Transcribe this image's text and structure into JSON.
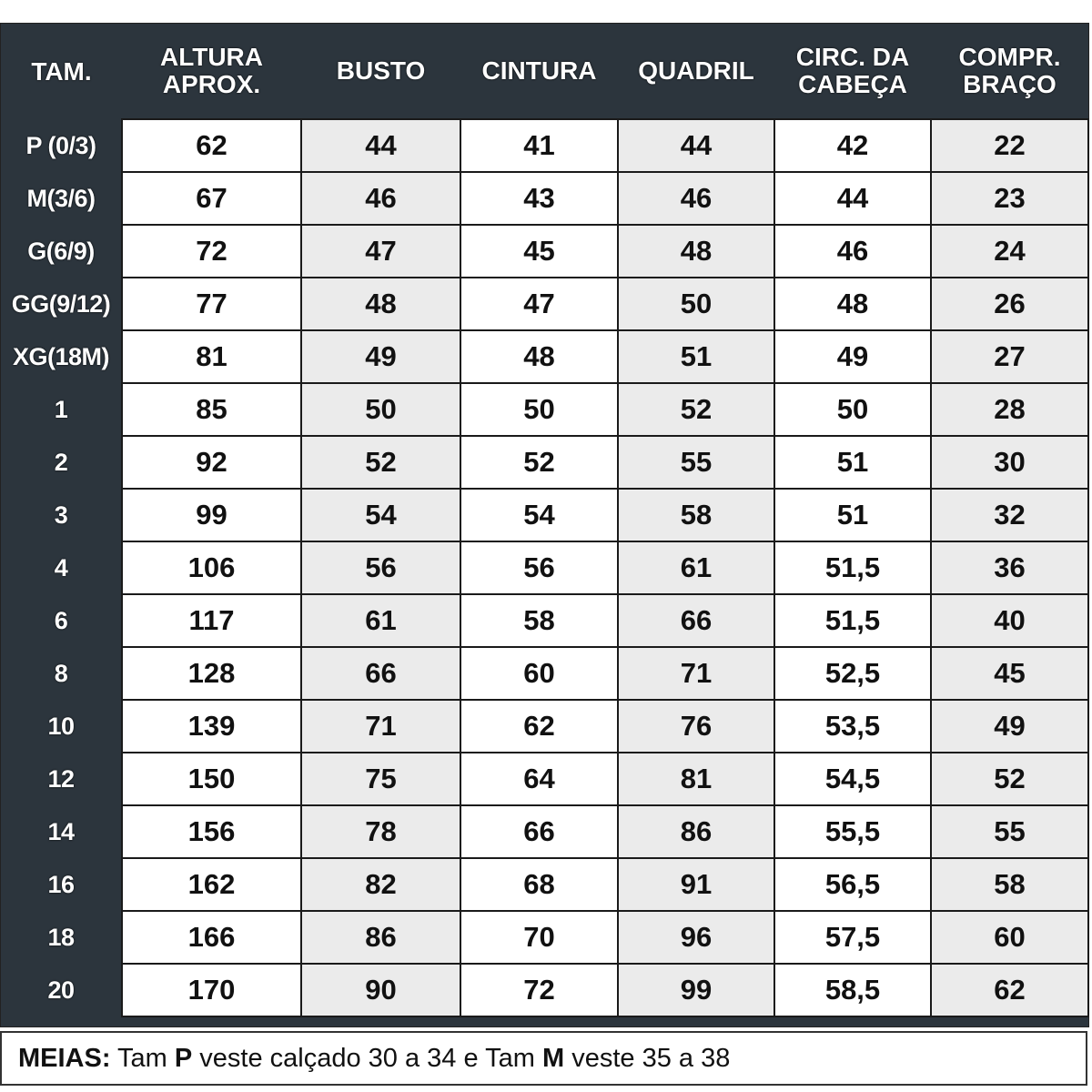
{
  "table": {
    "headers": [
      [
        "TAM.",
        ""
      ],
      [
        "ALTURA",
        "APROX."
      ],
      [
        "BUSTO",
        ""
      ],
      [
        "CINTURA",
        ""
      ],
      [
        "QUADRIL",
        ""
      ],
      [
        "CIRC. DA",
        "CABEÇA"
      ],
      [
        "COMPR.",
        "BRAÇO"
      ]
    ],
    "rows": [
      [
        "P (0/3)",
        "62",
        "44",
        "41",
        "44",
        "42",
        "22"
      ],
      [
        "M(3/6)",
        "67",
        "46",
        "43",
        "46",
        "44",
        "23"
      ],
      [
        "G(6/9)",
        "72",
        "47",
        "45",
        "48",
        "46",
        "24"
      ],
      [
        "GG(9/12)",
        "77",
        "48",
        "47",
        "50",
        "48",
        "26"
      ],
      [
        "XG(18M)",
        "81",
        "49",
        "48",
        "51",
        "49",
        "27"
      ],
      [
        "1",
        "85",
        "50",
        "50",
        "52",
        "50",
        "28"
      ],
      [
        "2",
        "92",
        "52",
        "52",
        "55",
        "51",
        "30"
      ],
      [
        "3",
        "99",
        "54",
        "54",
        "58",
        "51",
        "32"
      ],
      [
        "4",
        "106",
        "56",
        "56",
        "61",
        "51,5",
        "36"
      ],
      [
        "6",
        "117",
        "61",
        "58",
        "66",
        "51,5",
        "40"
      ],
      [
        "8",
        "128",
        "66",
        "60",
        "71",
        "52,5",
        "45"
      ],
      [
        "10",
        "139",
        "71",
        "62",
        "76",
        "53,5",
        "49"
      ],
      [
        "12",
        "150",
        "75",
        "64",
        "81",
        "54,5",
        "52"
      ],
      [
        "14",
        "156",
        "78",
        "66",
        "86",
        "55,5",
        "55"
      ],
      [
        "16",
        "162",
        "82",
        "68",
        "91",
        "56,5",
        "58"
      ],
      [
        "18",
        "166",
        "86",
        "70",
        "96",
        "57,5",
        "60"
      ],
      [
        "20",
        "170",
        "90",
        "72",
        "99",
        "58,5",
        "62"
      ]
    ]
  },
  "footer": {
    "label": "MEIAS:",
    "t1": " Tam ",
    "size_p": "P",
    "t2": " veste calçado 30 a 34  e Tam ",
    "size_m": "M",
    "t3": " veste 35 a 38"
  },
  "colors": {
    "header_bg": "#2c353d",
    "cell_white": "#ffffff",
    "cell_gray": "#ebebeb"
  }
}
